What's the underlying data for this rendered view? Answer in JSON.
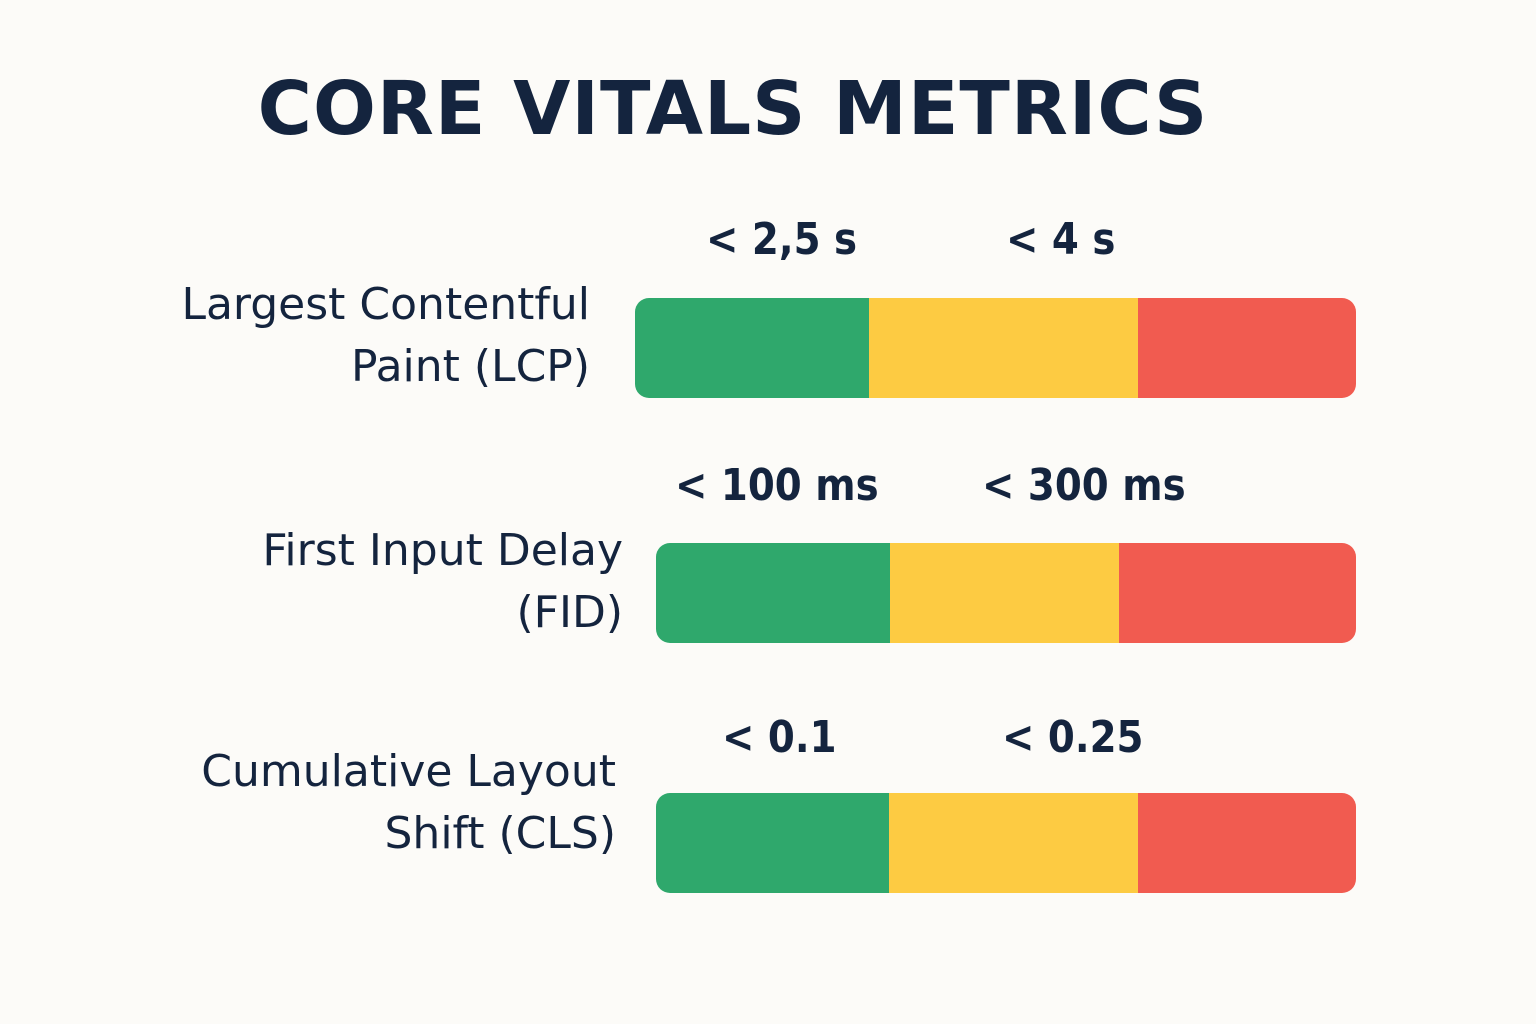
{
  "title": "CORE VITALS METRICS",
  "colors": {
    "good": "#2FA86C",
    "needs_improvement": "#FDCB42",
    "poor": "#F15B50",
    "text": "#14243E",
    "background": "#FCFBF8"
  },
  "metrics": [
    {
      "label_line1": "Largest Contentful",
      "label_line2": "Paint (LCP)",
      "thresholds": [
        "< 2,5 s",
        "< 4 s"
      ],
      "segments": [
        {
          "name": "good",
          "fraction": 0.325
        },
        {
          "name": "needs-improvement",
          "fraction": 0.373
        },
        {
          "name": "poor",
          "fraction": 0.302
        }
      ]
    },
    {
      "label_line1": "First Input Delay",
      "label_line2": "(FID)",
      "thresholds": [
        "< 100 ms",
        "< 300 ms"
      ],
      "segments": [
        {
          "name": "good",
          "fraction": 0.334
        },
        {
          "name": "needs-improvement",
          "fraction": 0.327
        },
        {
          "name": "poor",
          "fraction": 0.339
        }
      ]
    },
    {
      "label_line1": "Cumulative Layout",
      "label_line2": "Shift (CLS)",
      "thresholds": [
        "< 0.1",
        "< 0.25"
      ],
      "segments": [
        {
          "name": "good",
          "fraction": 0.333
        },
        {
          "name": "needs-improvement",
          "fraction": 0.356
        },
        {
          "name": "poor",
          "fraction": 0.311
        }
      ]
    }
  ]
}
